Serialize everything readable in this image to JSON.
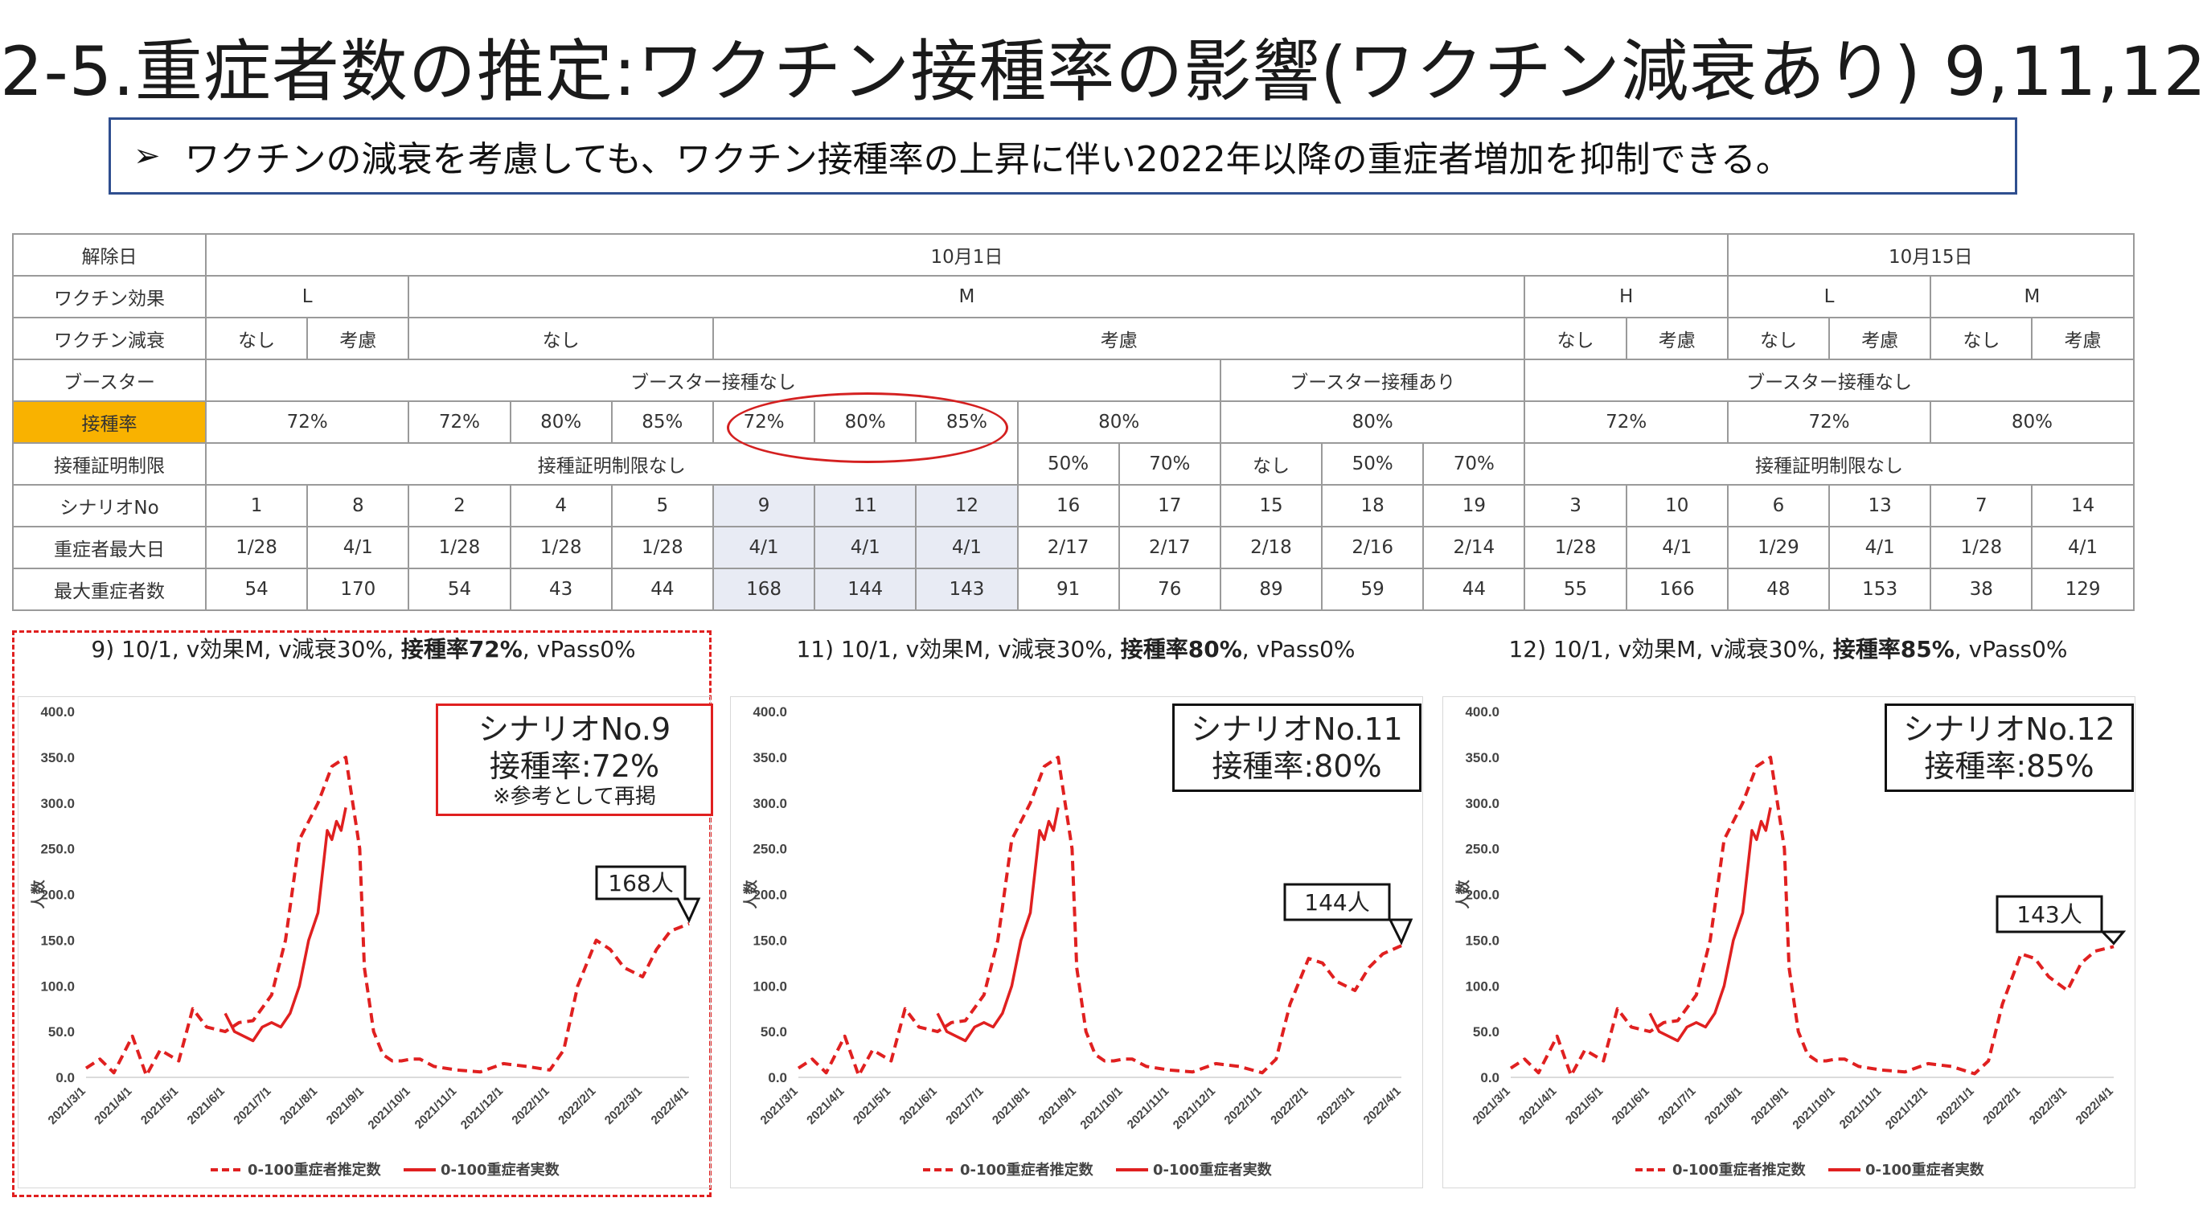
{
  "title": "2-5.重症者数の推定:ワクチン接種率の影響(ワクチン減衰あり) 9,11,12",
  "summary": {
    "arrow": "➢",
    "text": "ワクチンの減衰を考慮しても、ワクチン接種率の上昇に伴い2022年以降の重症者増加を抑制できる。"
  },
  "colors": {
    "accent": "#f9b200",
    "highlight": "#e8ebf4",
    "red": "#e02020",
    "box_border": "#2f4f8f"
  },
  "table": {
    "row_labels": [
      "解除日",
      "ワクチン効果",
      "ワクチン減衰",
      "ブースター",
      "接種率",
      "接種証明制限",
      "シナリオNo",
      "重症者最大日",
      "最大重症者数"
    ],
    "release_date": [
      "10月1日",
      "10月15日"
    ],
    "vaccine_effect": [
      "L",
      "M",
      "H",
      "L",
      "M"
    ],
    "decay": [
      "なし",
      "考慮",
      "なし",
      "考慮",
      "なし",
      "考慮",
      "なし",
      "考慮",
      "なし",
      "考慮"
    ],
    "booster": [
      "ブースター接種なし",
      "ブースター接種あり",
      "ブースター接種なし"
    ],
    "rate": [
      "72%",
      "72%",
      "80%",
      "85%",
      "72%",
      "80%",
      "85%",
      "80%",
      "80%",
      "72%",
      "72%",
      "80%"
    ],
    "cert_limit": [
      "接種証明制限なし",
      "50%",
      "70%",
      "なし",
      "50%",
      "70%",
      "接種証明制限なし"
    ],
    "scenario_no": [
      "1",
      "8",
      "2",
      "4",
      "5",
      "9",
      "11",
      "12",
      "16",
      "17",
      "15",
      "18",
      "19",
      "3",
      "10",
      "6",
      "13",
      "7",
      "14"
    ],
    "peak_date": [
      "1/28",
      "4/1",
      "1/28",
      "1/28",
      "1/28",
      "4/1",
      "4/1",
      "4/1",
      "2/17",
      "2/17",
      "2/18",
      "2/16",
      "2/14",
      "1/28",
      "4/1",
      "1/29",
      "4/1",
      "1/28",
      "4/1"
    ],
    "max_severe": [
      "54",
      "170",
      "54",
      "43",
      "44",
      "168",
      "144",
      "143",
      "91",
      "76",
      "89",
      "59",
      "44",
      "55",
      "166",
      "48",
      "153",
      "38",
      "129"
    ]
  },
  "panels": [
    {
      "title_pre": "9) 10/1, v効果M, v減衰30%, ",
      "title_bold": "接種率72%",
      "title_post": ", vPass0%",
      "box_line1": "シナリオNo.9",
      "box_line2": "接種率:72%",
      "box_note": "※参考として再掲",
      "callout": "168人"
    },
    {
      "title_pre": "11) 10/1, v効果M, v減衰30%, ",
      "title_bold": "接種率80%",
      "title_post": ", vPass0%",
      "box_line1": "シナリオNo.11",
      "box_line2": "接種率:80%",
      "box_note": "",
      "callout": "144人"
    },
    {
      "title_pre": "12) 10/1, v効果M, v減衰30%, ",
      "title_bold": "接種率85%",
      "title_post": ", vPass0%",
      "box_line1": "シナリオNo.12",
      "box_line2": "接種率:85%",
      "box_note": "",
      "callout": "143人"
    }
  ],
  "chart_data": [
    {
      "type": "line",
      "ylabel": "人数",
      "ylim": [
        0,
        400
      ],
      "yticks": [
        "0.0",
        "50.0",
        "100.0",
        "150.0",
        "200.0",
        "250.0",
        "300.0",
        "350.0",
        "400.0"
      ],
      "categories": [
        "2021/3/1",
        "2021/4/1",
        "2021/5/1",
        "2021/6/1",
        "2021/7/1",
        "2021/8/1",
        "2021/9/1",
        "2021/10/1",
        "2021/11/1",
        "2021/12/1",
        "2022/1/1",
        "2022/2/1",
        "2022/3/1",
        "2022/4/1"
      ],
      "legend": [
        "0-100重症者推定数",
        "0-100重症者実数"
      ],
      "series": [
        {
          "name": "0-100重症者推定数",
          "style": "dashed",
          "x": [
            0,
            0.3,
            0.6,
            1,
            1.3,
            1.6,
            2,
            2.3,
            2.6,
            3,
            3.3,
            3.6,
            4,
            4.3,
            4.6,
            5,
            5.3,
            5.6,
            5.9,
            6,
            6.2,
            6.4,
            6.6,
            6.8,
            7,
            7.2,
            7.5,
            8,
            8.5,
            9,
            9.5,
            10,
            10.3,
            10.6,
            11,
            11.3,
            11.6,
            12,
            12.3,
            12.6,
            13
          ],
          "values": [
            10,
            20,
            5,
            45,
            2,
            30,
            18,
            75,
            55,
            50,
            60,
            62,
            90,
            150,
            260,
            300,
            340,
            350,
            250,
            120,
            50,
            25,
            18,
            18,
            20,
            20,
            12,
            8,
            6,
            15,
            12,
            8,
            30,
            100,
            150,
            140,
            120,
            110,
            140,
            160,
            168
          ]
        },
        {
          "name": "0-100重症者実数",
          "style": "solid",
          "x": [
            3,
            3.2,
            3.4,
            3.6,
            3.8,
            4,
            4.2,
            4.4,
            4.6,
            4.8,
            5,
            5.2,
            5.3,
            5.4,
            5.5,
            5.6
          ],
          "values": [
            70,
            50,
            45,
            40,
            55,
            60,
            55,
            70,
            100,
            150,
            180,
            270,
            260,
            280,
            270,
            295
          ]
        }
      ]
    },
    {
      "type": "line",
      "ylabel": "人数",
      "ylim": [
        0,
        400
      ],
      "yticks": [
        "0.0",
        "50.0",
        "100.0",
        "150.0",
        "200.0",
        "250.0",
        "300.0",
        "350.0",
        "400.0"
      ],
      "categories": [
        "2021/3/1",
        "2021/4/1",
        "2021/5/1",
        "2021/6/1",
        "2021/7/1",
        "2021/8/1",
        "2021/9/1",
        "2021/10/1",
        "2021/11/1",
        "2021/12/1",
        "2022/1/1",
        "2022/2/1",
        "2022/3/1",
        "2022/4/1"
      ],
      "legend": [
        "0-100重症者推定数",
        "0-100重症者実数"
      ],
      "series": [
        {
          "name": "0-100重症者推定数",
          "style": "dashed",
          "x": [
            0,
            0.3,
            0.6,
            1,
            1.3,
            1.6,
            2,
            2.3,
            2.6,
            3,
            3.3,
            3.6,
            4,
            4.3,
            4.6,
            5,
            5.3,
            5.6,
            5.9,
            6,
            6.2,
            6.4,
            6.6,
            6.8,
            7,
            7.2,
            7.5,
            8,
            8.5,
            9,
            9.5,
            10,
            10.3,
            10.6,
            11,
            11.3,
            11.6,
            12,
            12.3,
            12.6,
            13
          ],
          "values": [
            10,
            20,
            5,
            45,
            2,
            30,
            18,
            75,
            55,
            50,
            60,
            62,
            90,
            150,
            260,
            300,
            340,
            350,
            250,
            120,
            50,
            25,
            18,
            18,
            20,
            20,
            12,
            8,
            6,
            15,
            12,
            5,
            20,
            80,
            130,
            125,
            105,
            95,
            120,
            135,
            144
          ]
        },
        {
          "name": "0-100重症者実数",
          "style": "solid",
          "x": [
            3,
            3.2,
            3.4,
            3.6,
            3.8,
            4,
            4.2,
            4.4,
            4.6,
            4.8,
            5,
            5.2,
            5.3,
            5.4,
            5.5,
            5.6
          ],
          "values": [
            70,
            50,
            45,
            40,
            55,
            60,
            55,
            70,
            100,
            150,
            180,
            270,
            260,
            280,
            270,
            295
          ]
        }
      ]
    },
    {
      "type": "line",
      "ylabel": "人数",
      "ylim": [
        0,
        400
      ],
      "yticks": [
        "0.0",
        "50.0",
        "100.0",
        "150.0",
        "200.0",
        "250.0",
        "300.0",
        "350.0",
        "400.0"
      ],
      "categories": [
        "2021/3/1",
        "2021/4/1",
        "2021/5/1",
        "2021/6/1",
        "2021/7/1",
        "2021/8/1",
        "2021/9/1",
        "2021/10/1",
        "2021/11/1",
        "2021/12/1",
        "2022/1/1",
        "2022/2/1",
        "2022/3/1",
        "2022/4/1"
      ],
      "legend": [
        "0-100重症者推定数",
        "0-100重症者実数"
      ],
      "series": [
        {
          "name": "0-100重症者推定数",
          "style": "dashed",
          "x": [
            0,
            0.3,
            0.6,
            1,
            1.3,
            1.6,
            2,
            2.3,
            2.6,
            3,
            3.3,
            3.6,
            4,
            4.3,
            4.6,
            5,
            5.3,
            5.6,
            5.9,
            6,
            6.2,
            6.4,
            6.6,
            6.8,
            7,
            7.2,
            7.5,
            8,
            8.5,
            9,
            9.5,
            10,
            10.3,
            10.6,
            11,
            11.3,
            11.6,
            12,
            12.3,
            12.6,
            13
          ],
          "values": [
            10,
            20,
            5,
            45,
            2,
            30,
            18,
            75,
            55,
            50,
            60,
            62,
            90,
            150,
            260,
            300,
            340,
            350,
            250,
            120,
            50,
            25,
            18,
            18,
            20,
            20,
            12,
            8,
            6,
            15,
            12,
            4,
            18,
            80,
            135,
            130,
            110,
            95,
            125,
            138,
            143
          ]
        },
        {
          "name": "0-100重症者実数",
          "style": "solid",
          "x": [
            3,
            3.2,
            3.4,
            3.6,
            3.8,
            4,
            4.2,
            4.4,
            4.6,
            4.8,
            5,
            5.2,
            5.3,
            5.4,
            5.5,
            5.6
          ],
          "values": [
            70,
            50,
            45,
            40,
            55,
            60,
            55,
            70,
            100,
            150,
            180,
            270,
            260,
            280,
            270,
            295
          ]
        }
      ]
    }
  ]
}
